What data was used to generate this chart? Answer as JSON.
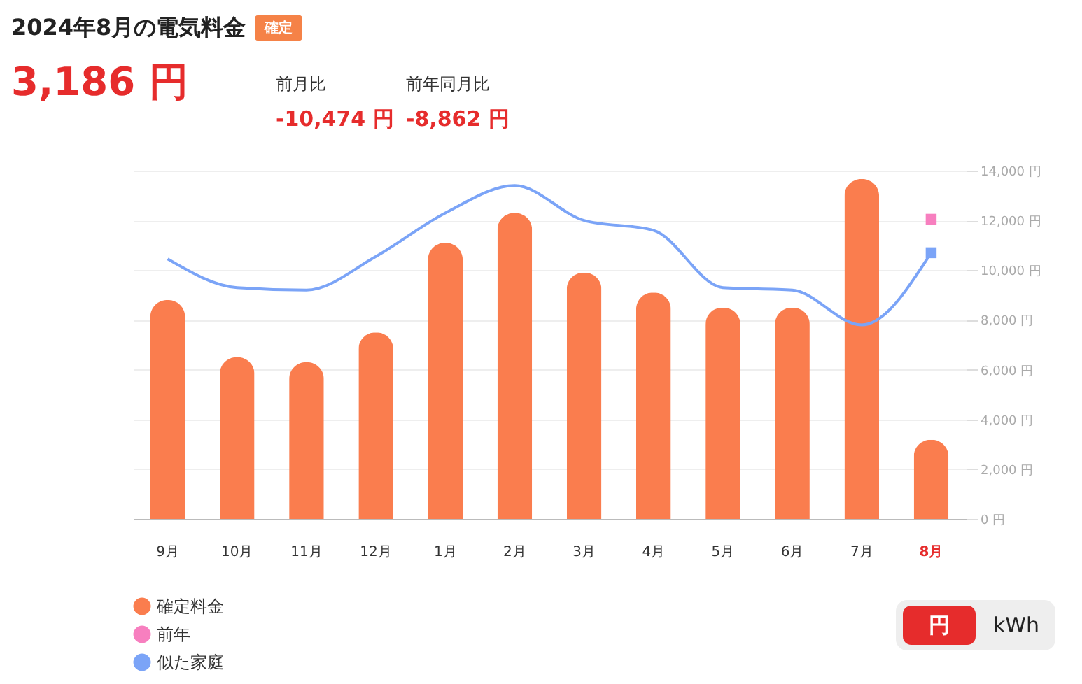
{
  "chart_data": {
    "type": "bar",
    "title": "2024年8月の電気料金",
    "annotations": [
      "確定",
      "3,186 円",
      "前月比",
      "-10,474 円",
      "前年同月比",
      "-8,862 円",
      "円",
      "kWh"
    ],
    "categories": [
      "9月",
      "10月",
      "11月",
      "12月",
      "1月",
      "2月",
      "3月",
      "4月",
      "5月",
      "6月",
      "7月",
      "8月"
    ],
    "series": [
      {
        "name": "確定料金",
        "color": "#fa7d4e",
        "values": [
          8800,
          6500,
          6300,
          7500,
          11100,
          12300,
          9900,
          9100,
          8500,
          8500,
          13660,
          3186
        ]
      },
      {
        "name": "前年",
        "type": "scatter",
        "marker": "square",
        "color": "#f77fbf",
        "values": [
          null,
          null,
          null,
          null,
          null,
          null,
          null,
          null,
          null,
          null,
          null,
          12048
        ]
      },
      {
        "name": "似た家庭",
        "type": "line",
        "color": "#7ba4f7",
        "values": [
          10450,
          9300,
          9200,
          10550,
          12300,
          13400,
          12000,
          11600,
          9300,
          9200,
          7800,
          10700
        ]
      },
      {
        "type": "scatter",
        "marker": "square",
        "color": "#7ba4f7",
        "values": [
          null,
          null,
          null,
          null,
          null,
          null,
          null,
          null,
          null,
          null,
          null,
          10700
        ]
      }
    ],
    "ylim": [
      0,
      14000
    ],
    "yticks": [
      {
        "value": 0,
        "label": "0 円"
      },
      {
        "value": 2000,
        "label": "2,000 円"
      },
      {
        "value": 4000,
        "label": "4,000 円"
      },
      {
        "value": 6000,
        "label": "6,000 円"
      },
      {
        "value": 8000,
        "label": "8,000 円"
      },
      {
        "value": 10000,
        "label": "10,000 円"
      },
      {
        "value": 12000,
        "label": "12,000 円"
      },
      {
        "value": 14000,
        "label": "14,000 円"
      }
    ],
    "grid": "y",
    "legend": "bottom left"
  }
}
